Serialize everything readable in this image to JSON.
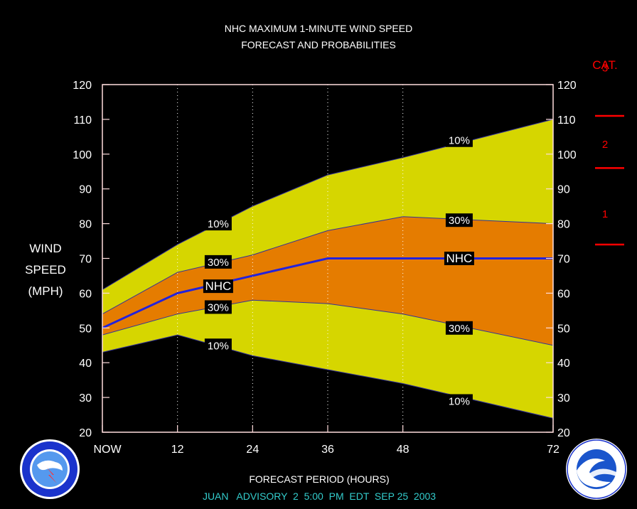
{
  "header": {
    "title_line1": "NHC MAXIMUM 1-MINUTE WIND SPEED",
    "title_line2": "FORECAST AND PROBABILITIES"
  },
  "footer": {
    "xlabel": "FORECAST PERIOD (HOURS)",
    "advisory": "JUAN   ADVISORY  2  5:00  PM  EDT  SEP 25  2003",
    "advisory_color": "#33cccc"
  },
  "category_scale": {
    "title": "CAT.",
    "labels": [
      {
        "text": "3",
        "mph": 125
      },
      {
        "text": "2",
        "mph": 103
      },
      {
        "text": "1",
        "mph": 83
      }
    ],
    "boundaries_mph": [
      111,
      96,
      74
    ],
    "color": "#ff0000"
  },
  "logos": {
    "left_name": "nws-logo",
    "right_name": "noaa-logo"
  },
  "chart_data": {
    "type": "area",
    "ylabel": [
      "WIND",
      "SPEED",
      "(MPH)"
    ],
    "ylim": [
      20,
      120
    ],
    "yticks": [
      20,
      30,
      40,
      50,
      60,
      70,
      80,
      90,
      100,
      110,
      120
    ],
    "xlim": [
      0,
      72
    ],
    "xticks": [
      {
        "value": 0,
        "label": "NOW"
      },
      {
        "value": 12,
        "label": "12"
      },
      {
        "value": 24,
        "label": "24"
      },
      {
        "value": 36,
        "label": "36"
      },
      {
        "value": 48,
        "label": "48"
      },
      {
        "value": 72,
        "label": "72"
      }
    ],
    "x": [
      0,
      12,
      24,
      36,
      48,
      72
    ],
    "series": [
      {
        "name": "10%",
        "role": "upper10",
        "values": [
          61,
          74,
          85,
          94,
          99,
          110
        ]
      },
      {
        "name": "30%",
        "role": "upper30",
        "values": [
          54,
          66,
          71,
          78,
          82,
          80
        ]
      },
      {
        "name": "NHC",
        "role": "forecast",
        "values": [
          50,
          60,
          65,
          70,
          70,
          70
        ]
      },
      {
        "name": "30%",
        "role": "lower30",
        "values": [
          48,
          54,
          58,
          57,
          54,
          45
        ]
      },
      {
        "name": "10%",
        "role": "lower10",
        "values": [
          43,
          48,
          42,
          38,
          34,
          24
        ]
      }
    ],
    "colors": {
      "band10": "#d6d600",
      "band30": "#e57c00",
      "forecast_line": "#2222dd",
      "frame": "#ffdddd"
    },
    "annotations": [
      {
        "text": "10%",
        "x": 18.5,
        "y": 80
      },
      {
        "text": "30%",
        "x": 18.5,
        "y": 69
      },
      {
        "text": "NHC",
        "x": 18.5,
        "y": 62
      },
      {
        "text": "30%",
        "x": 18.5,
        "y": 56
      },
      {
        "text": "10%",
        "x": 18.5,
        "y": 45
      },
      {
        "text": "10%",
        "x": 57,
        "y": 104
      },
      {
        "text": "30%",
        "x": 57,
        "y": 81
      },
      {
        "text": "NHC",
        "x": 57,
        "y": 70
      },
      {
        "text": "30%",
        "x": 57,
        "y": 50
      },
      {
        "text": "10%",
        "x": 57,
        "y": 29
      }
    ],
    "grid": "vertical-dotted"
  }
}
